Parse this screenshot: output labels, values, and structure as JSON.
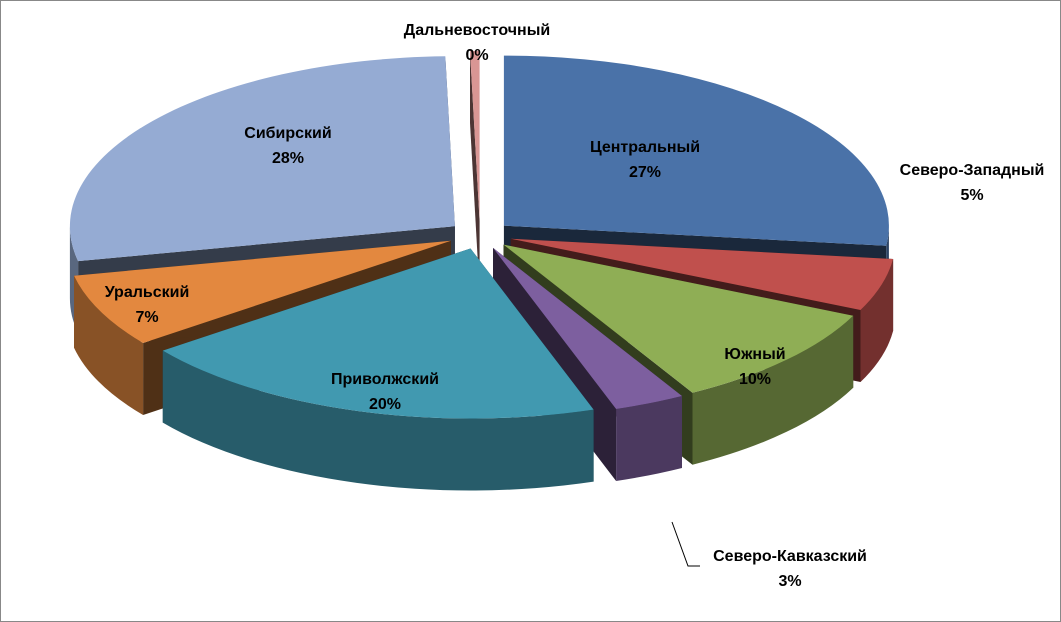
{
  "chart_data": {
    "type": "pie",
    "categories": [
      "Центральный",
      "Северо-Западный",
      "Южный",
      "Северо-Кавказский",
      "Приволжский",
      "Уральский",
      "Сибирский",
      "Дальневосточный"
    ],
    "values": [
      27,
      5,
      10,
      3,
      20,
      7,
      28,
      0.4
    ],
    "value_labels": [
      "27%",
      "5%",
      "10%",
      "3%",
      "20%",
      "7%",
      "28%",
      "0%"
    ],
    "colors": [
      "#4a72a8",
      "#c0504d",
      "#8fae55",
      "#7d5f9f",
      "#4199b0",
      "#e3883f",
      "#95abd3",
      "#d99694"
    ]
  }
}
